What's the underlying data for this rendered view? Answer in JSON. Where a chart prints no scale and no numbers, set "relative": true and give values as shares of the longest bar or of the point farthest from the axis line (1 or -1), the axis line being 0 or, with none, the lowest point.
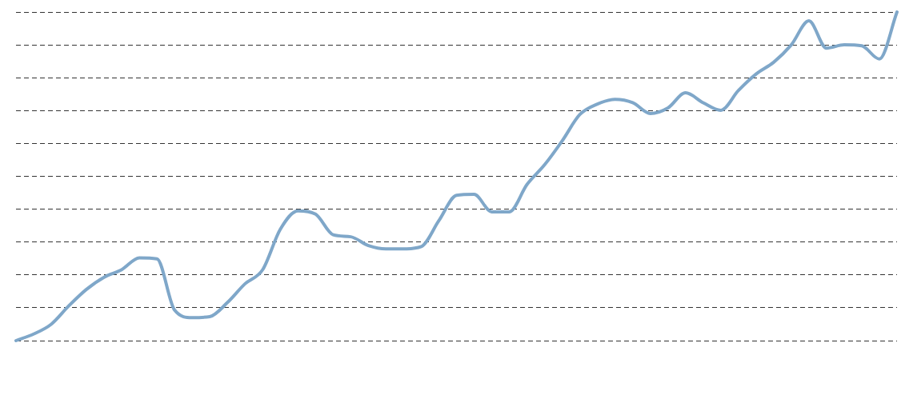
{
  "chart_data": {
    "type": "line",
    "relative": true,
    "grid": "y",
    "line_style": "solid",
    "marker": "none",
    "color": "#7fa7c9",
    "categories": [
      null,
      null,
      null,
      null,
      null,
      null,
      null,
      null,
      null,
      null,
      null,
      null,
      null,
      null,
      null,
      null,
      null,
      null,
      null,
      null,
      null,
      null,
      null,
      null,
      null,
      null,
      null,
      null,
      null,
      null,
      null,
      null,
      null,
      null,
      null,
      null,
      null,
      null,
      null,
      null,
      null,
      null,
      null,
      null,
      null,
      null,
      null,
      null,
      null,
      null,
      null
    ],
    "values": [
      0,
      0.02,
      0.05,
      0.106,
      0.156,
      0.193,
      0.216,
      0.252,
      0.249,
      0.093,
      0.07,
      0.073,
      0.116,
      0.173,
      0.216,
      0.339,
      0.395,
      0.385,
      0.322,
      0.316,
      0.289,
      0.279,
      0.279,
      0.286,
      0.365,
      0.442,
      0.445,
      0.392,
      0.392,
      0.475,
      0.535,
      0.608,
      0.688,
      0.72,
      0.734,
      0.724,
      0.691,
      0.708,
      0.754,
      0.724,
      0.701,
      0.761,
      0.811,
      0.847,
      0.9,
      0.973,
      0.89,
      0.9,
      0.897,
      0.857,
      1
    ]
  }
}
